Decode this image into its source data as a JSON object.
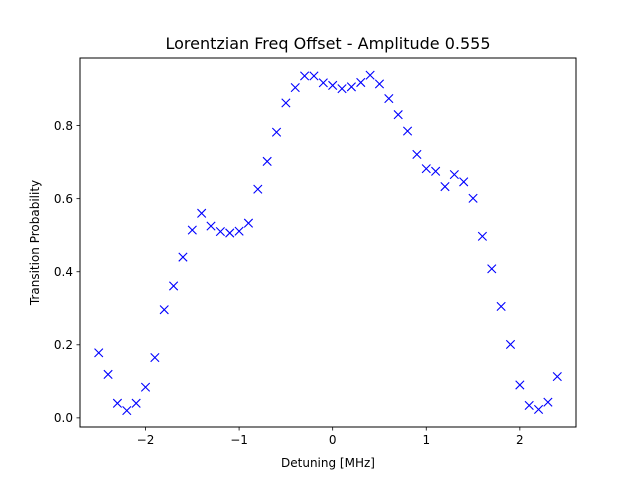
{
  "chart_data": {
    "type": "scatter",
    "title": "Lorentzian Freq Offset - Amplitude 0.555",
    "xlabel": "Detuning [MHz]",
    "ylabel": "Transition Probability",
    "xlim": [
      -2.7,
      2.6
    ],
    "ylim": [
      -0.025,
      0.985
    ],
    "xticks": [
      -2,
      -1,
      0,
      1,
      2
    ],
    "xtick_labels": [
      "−2",
      "−1",
      "0",
      "1",
      "2"
    ],
    "yticks": [
      0.0,
      0.2,
      0.4,
      0.6,
      0.8
    ],
    "ytick_labels": [
      "0.0",
      "0.2",
      "0.4",
      "0.6",
      "0.8"
    ],
    "grid": false,
    "legend": "none",
    "marker": "x",
    "color": "#0000ff",
    "series": [
      {
        "x": [
          -2.5,
          -2.4,
          -2.3,
          -2.2,
          -2.1,
          -2.0,
          -1.9,
          -1.8,
          -1.7,
          -1.6,
          -1.5,
          -1.4,
          -1.3,
          -1.2,
          -1.1,
          -1.0,
          -0.9,
          -0.8,
          -0.7,
          -0.6,
          -0.5,
          -0.4,
          -0.3,
          -0.2,
          -0.1,
          0.0,
          0.1,
          0.2,
          0.3,
          0.4,
          0.5,
          0.6,
          0.7,
          0.8,
          0.9,
          1.0,
          1.1,
          1.2,
          1.3,
          1.4,
          1.5,
          1.6,
          1.7,
          1.8,
          1.9,
          2.0,
          2.1,
          2.2,
          2.3,
          2.4
        ],
        "y": [
          0.178,
          0.119,
          0.04,
          0.02,
          0.04,
          0.084,
          0.165,
          0.296,
          0.361,
          0.44,
          0.514,
          0.56,
          0.525,
          0.51,
          0.506,
          0.511,
          0.533,
          0.626,
          0.702,
          0.782,
          0.862,
          0.904,
          0.936,
          0.936,
          0.917,
          0.91,
          0.901,
          0.906,
          0.918,
          0.938,
          0.914,
          0.874,
          0.83,
          0.785,
          0.721,
          0.682,
          0.675,
          0.633,
          0.666,
          0.646,
          0.601,
          0.497,
          0.408,
          0.305,
          0.201,
          0.09,
          0.034,
          0.023,
          0.043,
          0.113
        ]
      }
    ]
  }
}
